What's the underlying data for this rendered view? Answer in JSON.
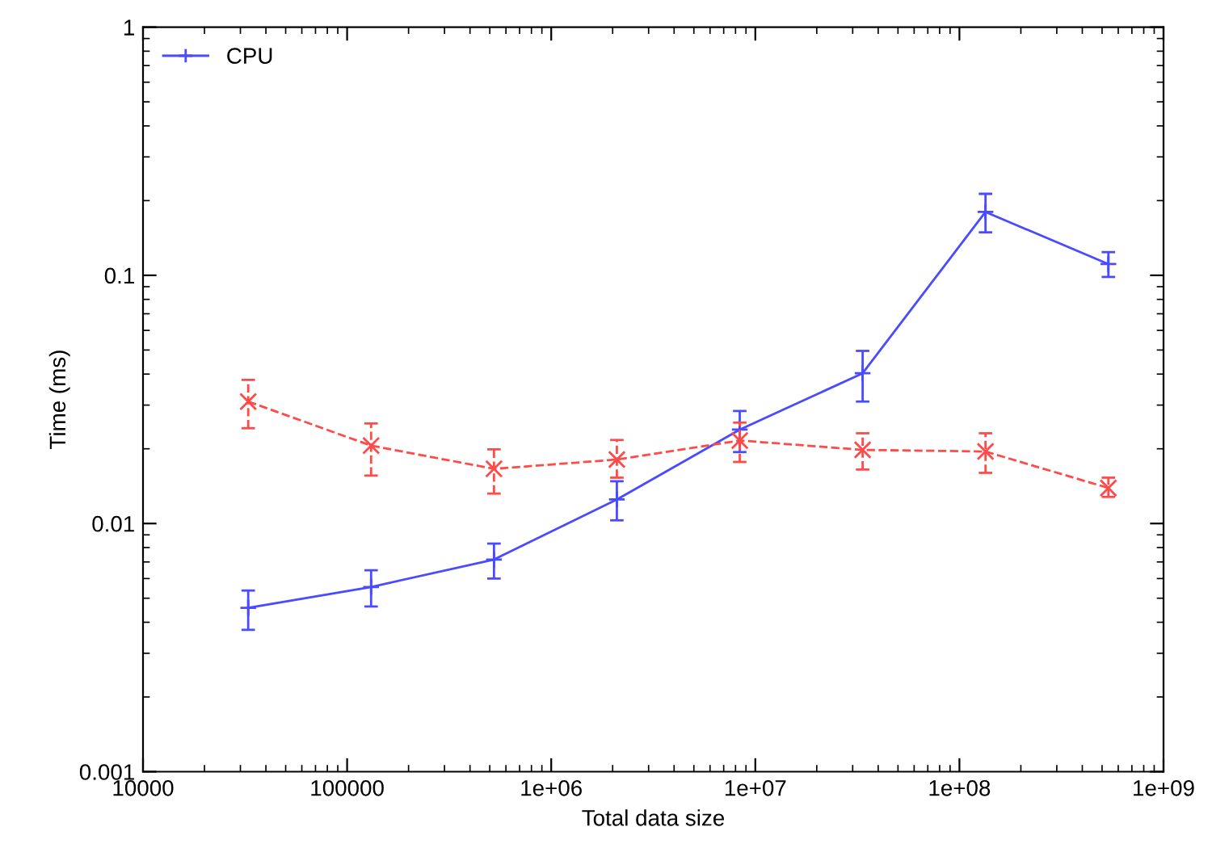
{
  "chart_data": {
    "type": "line",
    "xlabel": "Total data size",
    "ylabel": "Time (ms)",
    "x": [
      32768,
      131072,
      524288,
      2097152,
      8388608,
      33554432,
      134217728,
      536870912
    ],
    "series": [
      {
        "name": "CPU",
        "color": "#4a4aff",
        "marker": "plus",
        "line_style": "solid",
        "values": [
          0.00457,
          0.00555,
          0.00716,
          0.0125,
          0.0239,
          0.0403,
          0.18,
          0.111
        ],
        "errors": [
          [
            0.00373,
            0.00537
          ],
          [
            0.00463,
            0.00648
          ],
          [
            0.006,
            0.0083
          ],
          [
            0.0103,
            0.0148
          ],
          [
            0.0194,
            0.0284
          ],
          [
            0.031,
            0.0496
          ],
          [
            0.149,
            0.213
          ],
          [
            0.0985,
            0.124
          ]
        ]
      },
      {
        "color": "#ff4a4a",
        "marker": "cross",
        "line_style": "dashed",
        "values": [
          0.031,
          0.0206,
          0.0166,
          0.0181,
          0.0216,
          0.0198,
          0.0195,
          0.0139
        ],
        "errors": [
          [
            0.0242,
            0.0379
          ],
          [
            0.0156,
            0.0253
          ],
          [
            0.0132,
            0.0199
          ],
          [
            0.0153,
            0.0217
          ],
          [
            0.0177,
            0.0255
          ],
          [
            0.0165,
            0.0231
          ],
          [
            0.016,
            0.0231
          ],
          [
            0.0128,
            0.0153
          ]
        ]
      }
    ],
    "log": "xy",
    "xlim": [
      10000,
      1000000000
    ],
    "ylim": [
      0.001,
      1
    ],
    "xticks": [
      10000,
      100000,
      {
        "value": 1000000,
        "label": "1e+06"
      },
      {
        "value": 10000000,
        "label": "1e+07"
      },
      {
        "value": 100000000,
        "label": "1e+08"
      },
      {
        "value": 1000000000,
        "label": "1e+09"
      }
    ],
    "yticks": [
      0.001,
      0.01,
      0.1,
      1
    ],
    "grid": false,
    "legend": "top left"
  }
}
